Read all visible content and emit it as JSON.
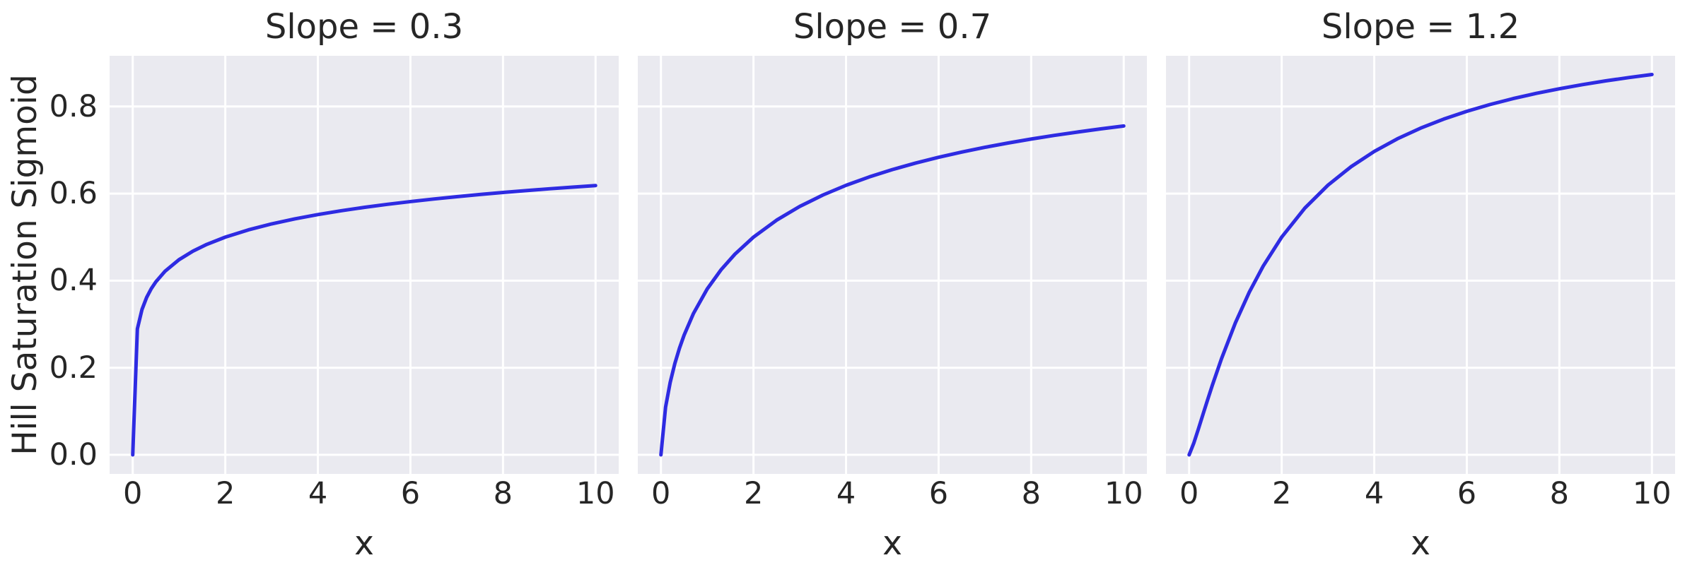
{
  "figure": {
    "ylabel": "Hill Saturation Sigmoid",
    "xlabel": "x",
    "background_color": "#ffffff",
    "axes_background_color": "#eaeaf0",
    "grid_color": "#ffffff",
    "text_color": "#262626",
    "line_color": "#2e2be2"
  },
  "chart_data": [
    {
      "type": "line",
      "title": "Slope = 0.3",
      "xlabel": "x",
      "ylabel": "Hill Saturation Sigmoid",
      "legend": null,
      "grid": true,
      "line_color": "#2e2be2",
      "xlim": [
        -0.5,
        10.5
      ],
      "ylim": [
        -0.0437,
        0.9164
      ],
      "xticks": [
        0,
        2,
        4,
        6,
        8,
        10
      ],
      "xtick_labels": [
        "0",
        "2",
        "4",
        "6",
        "8",
        "10"
      ],
      "yticks": [
        0.0,
        0.2,
        0.4,
        0.6,
        0.8
      ],
      "ytick_labels": [
        "0.0",
        "0.2",
        "0.4",
        "0.6",
        "0.8"
      ],
      "show_ytick_labels": true,
      "x": [
        0,
        0.1,
        0.2,
        0.3,
        0.4,
        0.5,
        0.7,
        1,
        1.3,
        1.6,
        2,
        2.5,
        3,
        3.5,
        4,
        4.5,
        5,
        5.5,
        6,
        6.5,
        7,
        7.5,
        8,
        8.5,
        9,
        9.5,
        10
      ],
      "y": [
        0,
        0.2893,
        0.3339,
        0.3614,
        0.3816,
        0.3975,
        0.4219,
        0.4482,
        0.4677,
        0.4833,
        0.5,
        0.5167,
        0.5304,
        0.5419,
        0.5518,
        0.5605,
        0.5683,
        0.5753,
        0.5816,
        0.5875,
        0.5929,
        0.5979,
        0.6025,
        0.6068,
        0.611,
        0.6148,
        0.6184
      ]
    },
    {
      "type": "line",
      "title": "Slope = 0.7",
      "xlabel": "x",
      "ylabel": "Hill Saturation Sigmoid",
      "legend": null,
      "grid": true,
      "line_color": "#2e2be2",
      "xlim": [
        -0.5,
        10.5
      ],
      "ylim": [
        -0.0437,
        0.9164
      ],
      "xticks": [
        0,
        2,
        4,
        6,
        8,
        10
      ],
      "xtick_labels": [
        "0",
        "2",
        "4",
        "6",
        "8",
        "10"
      ],
      "yticks": [
        0.0,
        0.2,
        0.4,
        0.6,
        0.8
      ],
      "ytick_labels": [
        "0.0",
        "0.2",
        "0.4",
        "0.6",
        "0.8"
      ],
      "show_ytick_labels": false,
      "x": [
        0,
        0.1,
        0.2,
        0.3,
        0.4,
        0.5,
        0.7,
        1,
        1.3,
        1.6,
        2,
        2.5,
        3,
        3.5,
        4,
        4.5,
        5,
        5.5,
        6,
        6.5,
        7,
        7.5,
        8,
        8.5,
        9,
        9.5,
        10
      ],
      "y": [
        0,
        0.1094,
        0.1663,
        0.2095,
        0.2448,
        0.2748,
        0.3241,
        0.381,
        0.4252,
        0.461,
        0.5,
        0.539,
        0.5705,
        0.5967,
        0.619,
        0.6382,
        0.6551,
        0.67,
        0.6833,
        0.6953,
        0.7062,
        0.7161,
        0.7252,
        0.7336,
        0.7413,
        0.7485,
        0.7552
      ]
    },
    {
      "type": "line",
      "title": "Slope = 1.2",
      "xlabel": "x",
      "ylabel": "Hill Saturation Sigmoid",
      "legend": null,
      "grid": true,
      "line_color": "#2e2be2",
      "xlim": [
        -0.5,
        10.5
      ],
      "ylim": [
        -0.0437,
        0.9164
      ],
      "xticks": [
        0,
        2,
        4,
        6,
        8,
        10
      ],
      "xtick_labels": [
        "0",
        "2",
        "4",
        "6",
        "8",
        "10"
      ],
      "yticks": [
        0.0,
        0.2,
        0.4,
        0.6,
        0.8
      ],
      "ytick_labels": [
        "0.0",
        "0.2",
        "0.4",
        "0.6",
        "0.8"
      ],
      "show_ytick_labels": false,
      "x": [
        0,
        0.1,
        0.2,
        0.3,
        0.4,
        0.5,
        0.7,
        1,
        1.3,
        1.6,
        2,
        2.5,
        3,
        3.5,
        4,
        4.5,
        5,
        5.5,
        6,
        6.5,
        7,
        7.5,
        8,
        8.5,
        9,
        9.5,
        10
      ],
      "y": [
        0,
        0.0267,
        0.0593,
        0.0931,
        0.1266,
        0.1593,
        0.221,
        0.3033,
        0.3736,
        0.4334,
        0.5,
        0.5666,
        0.6193,
        0.6618,
        0.6967,
        0.7258,
        0.7502,
        0.771,
        0.7889,
        0.8045,
        0.8181,
        0.8301,
        0.8407,
        0.8502,
        0.8588,
        0.8664,
        0.8734
      ]
    }
  ]
}
